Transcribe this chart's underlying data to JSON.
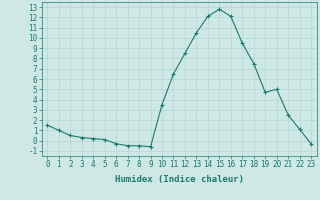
{
  "x": [
    0,
    1,
    2,
    3,
    4,
    5,
    6,
    7,
    8,
    9,
    10,
    11,
    12,
    13,
    14,
    15,
    16,
    17,
    18,
    19,
    20,
    21,
    22,
    23
  ],
  "y": [
    1.5,
    1.0,
    0.5,
    0.3,
    0.2,
    0.1,
    -0.3,
    -0.5,
    -0.5,
    -0.6,
    3.5,
    6.5,
    8.5,
    10.5,
    12.1,
    12.8,
    12.1,
    9.5,
    7.5,
    4.7,
    5.0,
    2.5,
    1.1,
    -0.3
  ],
  "line_color": "#1a7a6e",
  "marker": "+",
  "marker_size": 3,
  "marker_lw": 0.8,
  "line_width": 0.8,
  "xlabel": "Humidex (Indice chaleur)",
  "xlim": [
    -0.5,
    23.5
  ],
  "ylim": [
    -1.5,
    13.5
  ],
  "yticks": [
    -1,
    0,
    1,
    2,
    3,
    4,
    5,
    6,
    7,
    8,
    9,
    10,
    11,
    12,
    13
  ],
  "xticks": [
    0,
    1,
    2,
    3,
    4,
    5,
    6,
    7,
    8,
    9,
    10,
    11,
    12,
    13,
    14,
    15,
    16,
    17,
    18,
    19,
    20,
    21,
    22,
    23
  ],
  "bg_color": "#cde8e5",
  "grid_color": "#b0d8d4",
  "font_color": "#1a7a6e",
  "tick_fontsize": 5.5,
  "xlabel_fontsize": 6.5
}
